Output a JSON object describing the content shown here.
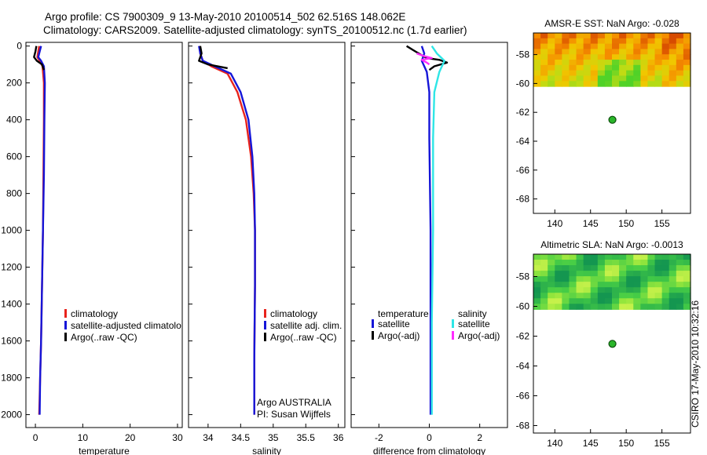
{
  "header": {
    "title_line1": "Argo profile: CS 7900309_9 13-May-2010 20100514_502 62.516S 148.062E",
    "title_line2": "Climatology: CARS2009. Satellite-adjusted climatology: synTS_20100512.nc (1.7d earlier)"
  },
  "side_label": "CSIRO 17-May-2010 10:32:16",
  "colors": {
    "red": "#e8231c",
    "blue": "#1515d8",
    "black": "#000000",
    "cyan": "#2ee6e6",
    "magenta": "#ff2cff",
    "marker": "#2ab52a"
  },
  "chart_data": [
    {
      "type": "line",
      "id": "temperature",
      "xlabel": "temperature",
      "xlim": [
        -2,
        31
      ],
      "ylim": [
        2070,
        -20
      ],
      "xticks": [
        0,
        10,
        20,
        30
      ],
      "yticks": [
        0,
        200,
        400,
        600,
        800,
        1000,
        1200,
        1400,
        1600,
        1800,
        2000
      ],
      "legend": [
        "climatology",
        "satellite-adjusted climatolo",
        "Argo(..raw -QC)"
      ],
      "series": [
        {
          "name": "climatology",
          "color": "red",
          "x": [
            0.8,
            0.6,
            0.4,
            0.9,
            1.5,
            1.8,
            1.8,
            1.7,
            1.6,
            1.4,
            1.2,
            1.0,
            0.8
          ],
          "y": [
            0,
            30,
            60,
            80,
            110,
            200,
            400,
            700,
            1000,
            1300,
            1600,
            1800,
            2000
          ]
        },
        {
          "name": "satellite-adjusted climatology",
          "color": "blue",
          "x": [
            1.2,
            0.9,
            0.6,
            1.2,
            1.8,
            2.0,
            1.9,
            1.8,
            1.6,
            1.4,
            1.2,
            1.0,
            0.9
          ],
          "y": [
            0,
            30,
            60,
            80,
            110,
            200,
            400,
            700,
            1000,
            1300,
            1600,
            1800,
            2000
          ]
        },
        {
          "name": "Argo(..raw -QC)",
          "color": "black",
          "x": [
            0.2,
            0.0,
            -0.3,
            0.3,
            1.4,
            1.8
          ],
          "y": [
            0,
            30,
            60,
            80,
            100,
            130
          ]
        }
      ]
    },
    {
      "type": "line",
      "id": "salinity",
      "xlabel": "salinity",
      "xlim": [
        33.7,
        36.1
      ],
      "ylim": [
        2070,
        -20
      ],
      "xticks": [
        34,
        34.5,
        35,
        35.5,
        36
      ],
      "xticklabels": [
        "34",
        "34.5",
        "35",
        "35.5",
        "36"
      ],
      "legend": [
        "climatology",
        "satellite adj. clim.",
        "Argo(..raw -QC)"
      ],
      "annotation_line1": "Argo AUSTRALIA",
      "annotation_line2": "PI: Susan Wijffels",
      "series": [
        {
          "name": "climatology",
          "color": "red",
          "x": [
            33.87,
            33.88,
            33.92,
            34.05,
            34.3,
            34.45,
            34.58,
            34.66,
            34.7,
            34.72,
            34.72,
            34.71,
            34.71
          ],
          "y": [
            0,
            40,
            80,
            110,
            150,
            250,
            400,
            600,
            800,
            1000,
            1300,
            1700,
            2000
          ]
        },
        {
          "name": "satellite-adjusted climatology",
          "color": "blue",
          "x": [
            33.86,
            33.88,
            33.92,
            34.1,
            34.35,
            34.5,
            34.62,
            34.68,
            34.71,
            34.72,
            34.72,
            34.71,
            34.71
          ],
          "y": [
            0,
            40,
            80,
            110,
            150,
            250,
            400,
            600,
            800,
            1000,
            1300,
            1700,
            2000
          ]
        },
        {
          "name": "Argo(..raw -QC)",
          "color": "black",
          "x": [
            33.88,
            33.9,
            33.86,
            34.0,
            34.3
          ],
          "y": [
            0,
            40,
            80,
            100,
            120
          ]
        }
      ]
    },
    {
      "type": "line",
      "id": "difference",
      "xlabel": "difference from climatology",
      "xlim": [
        -3.1,
        3.1
      ],
      "ylim": [
        2070,
        -20
      ],
      "xticks": [
        -2,
        0,
        2
      ],
      "legend_temperature_title": "temperature",
      "legend_salinity_title": "salinity",
      "legend_temperature": [
        "satellite",
        "Argo(-adj)"
      ],
      "legend_salinity": [
        "satellite",
        "Argo(-adj)"
      ],
      "series": [
        {
          "name": "temperature satellite",
          "color": "blue",
          "x": [
            -0.3,
            -0.2,
            -0.3,
            -0.1,
            0.0,
            0.0,
            0.05,
            0.05,
            0.05
          ],
          "y": [
            0,
            40,
            80,
            140,
            250,
            500,
            1000,
            1500,
            2000
          ]
        },
        {
          "name": "temperature Argo(-adj)",
          "color": "black",
          "x": [
            -0.9,
            -0.6,
            -0.3,
            -0.1,
            0.4,
            0.7,
            0.2,
            0.0
          ],
          "y": [
            0,
            25,
            50,
            65,
            75,
            90,
            110,
            130
          ]
        },
        {
          "name": "salinity satellite",
          "color": "cyan",
          "x": [
            0.1,
            0.3,
            0.6,
            0.4,
            0.2,
            0.15,
            0.15,
            0.1,
            0.1
          ],
          "y": [
            0,
            40,
            80,
            140,
            250,
            500,
            1000,
            1500,
            2000
          ]
        },
        {
          "name": "salinity Argo(-adj)",
          "color": "magenta",
          "x": [
            -0.5,
            -0.2,
            0.1,
            -0.3,
            -0.1,
            0.0
          ],
          "y": [
            40,
            55,
            65,
            75,
            90,
            100
          ]
        }
      ]
    },
    {
      "type": "heatmap",
      "id": "amsre_sst",
      "title": "AMSR-E SST: NaN Argo: -0.028",
      "xlim": [
        137,
        159
      ],
      "ylim": [
        -69,
        -56.5
      ],
      "xticks": [
        140,
        145,
        150,
        155
      ],
      "yticks": [
        -58,
        -60,
        -62,
        -64,
        -66,
        -68
      ],
      "data_lat_range": [
        -60.2,
        -56.5
      ],
      "colormap": "sst",
      "argo_lon": 148.062,
      "argo_lat": -62.516
    },
    {
      "type": "heatmap",
      "id": "altimetric_sla",
      "title": "Altimetric SLA: NaN Argo: -0.0013",
      "xlim": [
        137,
        159
      ],
      "ylim": [
        -68.5,
        -56.5
      ],
      "xticks": [
        140,
        145,
        150,
        155
      ],
      "yticks": [
        -58,
        -60,
        -62,
        -64,
        -66,
        -68
      ],
      "data_lat_range": [
        -60.2,
        -56.5
      ],
      "colormap": "sla",
      "argo_lon": 148.062,
      "argo_lat": -62.516
    }
  ]
}
